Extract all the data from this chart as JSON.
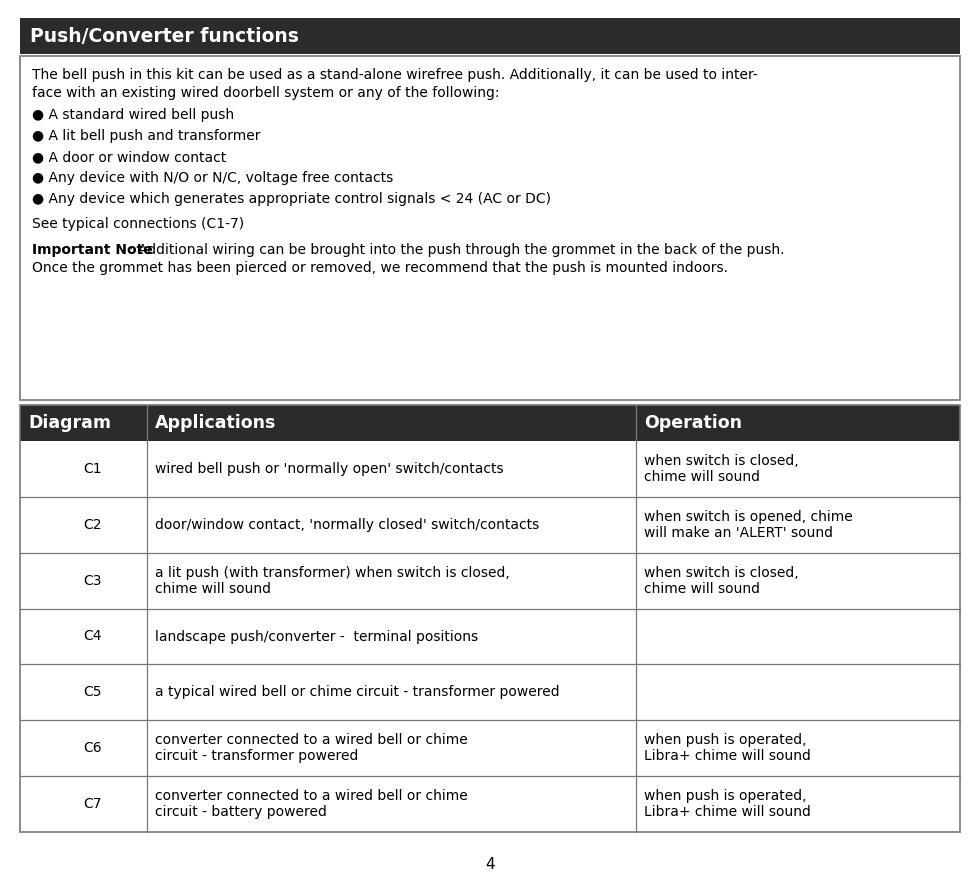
{
  "title": "Push/Converter functions",
  "title_bg": "#2b2b2b",
  "title_color": "#ffffff",
  "title_fontsize": 13.5,
  "body_text_color": "#000000",
  "intro_line1": "The bell push in this kit can be used as a stand-alone wirefree push. Additionally, it can be used to inter-",
  "intro_line2": "face with an existing wired doorbell system or any of the following:",
  "bullet_items": [
    "A standard wired bell push",
    "A lit bell push and transformer",
    "A door or window contact",
    "Any device with N/O or N/C, voltage free contacts",
    "Any device which generates appropriate control signals < 24 (AC or DC)"
  ],
  "see_text": "See typical connections (C1-7)",
  "important_label": "Important Note",
  "important_rest": ": Additional wiring can be brought into the push through the grommet in the back of the push.",
  "important_line2": "Once the grommet has been pierced or removed, we recommend that the push is mounted indoors.",
  "table_header_bg": "#2b2b2b",
  "table_header_color": "#ffffff",
  "table_header_fontsize": 12.5,
  "table_col_headers": [
    "Diagram",
    "Applications",
    "Operation"
  ],
  "col_sep1": 0.135,
  "col_sep2": 0.655,
  "table_rows": [
    {
      "diagram": "C1",
      "application": "wired bell push or 'normally open' switch/contacts",
      "operation": "when switch is closed,\nchime will sound"
    },
    {
      "diagram": "C2",
      "application": "door/window contact, 'normally closed' switch/contacts",
      "operation": "when switch is opened, chime\nwill make an 'ALERT' sound"
    },
    {
      "diagram": "C3",
      "application": "a lit push (with transformer) when switch is closed,\nchime will sound",
      "operation": "when switch is closed,\nchime will sound"
    },
    {
      "diagram": "C4",
      "application": "landscape push/converter -  terminal positions",
      "operation": ""
    },
    {
      "diagram": "C5",
      "application": "a typical wired bell or chime circuit - transformer powered",
      "operation": ""
    },
    {
      "diagram": "C6",
      "application": "converter connected to a wired bell or chime\ncircuit - transformer powered",
      "operation": "when push is operated,\nLibra+ chime will sound"
    },
    {
      "diagram": "C7",
      "application": "converter connected to a wired bell or chime\ncircuit - battery powered",
      "operation": "when push is operated,\nLibra+ chime will sound"
    }
  ],
  "page_number": "4",
  "font_family": "DejaVu Sans",
  "body_fontsize": 10.0,
  "table_fontsize": 10.0
}
